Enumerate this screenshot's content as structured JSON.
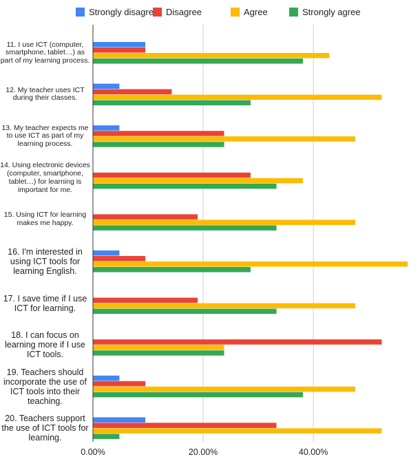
{
  "chart_data": {
    "type": "bar",
    "orientation": "horizontal",
    "categories": [
      "11. I use ICT (computer, smartphone, tablet…) as part of my learning process.",
      "12. My teacher uses ICT during their classes.",
      "13. My teacher expects me to use ICT as part of my learning process.",
      "14. Using electronic devices (computer, smartphone, tablet…) for learning is important for me.",
      "15. Using ICT  for learning makes me happy.",
      "16. I'm interested in using ICT tools for learning English.",
      "17. I save time if I use ICT for learning.",
      "18. I can focus on learning more if I use ICT tools.",
      "19. Teachers should incorporate the use of ICT tools into their teaching.",
      "20. Teachers support the use of ICT tools for learning."
    ],
    "series": [
      {
        "name": "Strongly disagree",
        "color": "#4285f4",
        "values": [
          9.5,
          4.8,
          4.8,
          0,
          0,
          4.8,
          0,
          0,
          4.8,
          9.5
        ]
      },
      {
        "name": "Disagree",
        "color": "#ea4335",
        "values": [
          9.5,
          14.3,
          23.8,
          28.6,
          19.0,
          9.5,
          19.0,
          52.4,
          9.5,
          33.3
        ]
      },
      {
        "name": "Agree",
        "color": "#fbbc04",
        "values": [
          42.9,
          52.4,
          47.6,
          38.1,
          47.6,
          57.1,
          47.6,
          23.8,
          47.6,
          52.4
        ]
      },
      {
        "name": "Strongly agree",
        "color": "#34a853",
        "values": [
          38.1,
          28.6,
          23.8,
          33.3,
          33.3,
          28.6,
          33.3,
          23.8,
          38.1,
          4.8
        ]
      }
    ],
    "xlim": [
      0,
      57.1
    ],
    "ticks": [
      0,
      20,
      40
    ],
    "tick_labels": [
      "0.00%",
      "20.00%",
      "40.00%"
    ],
    "grid": true,
    "legend_position": "top"
  }
}
